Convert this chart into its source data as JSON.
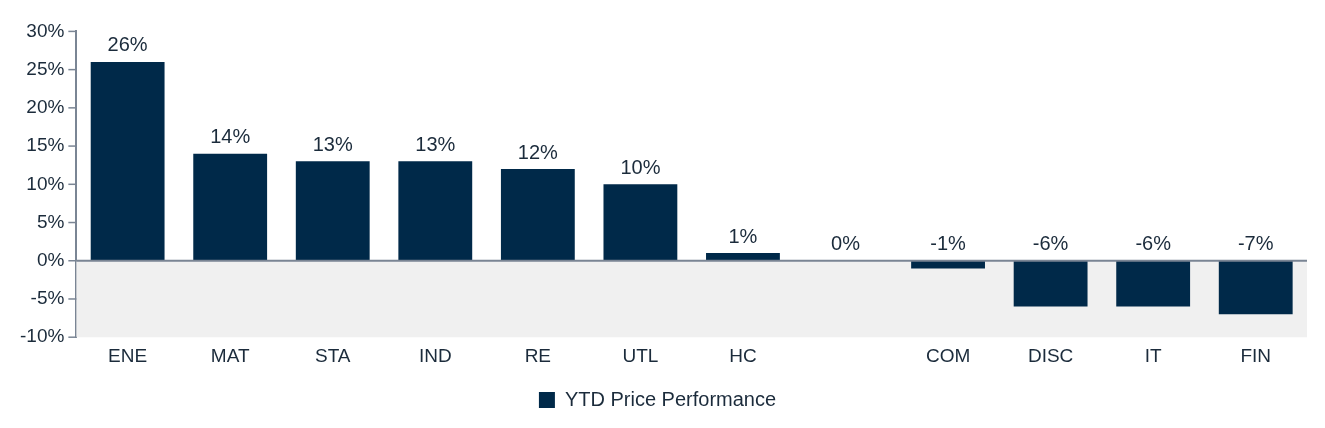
{
  "chart_data": {
    "type": "bar",
    "categories": [
      "ENE",
      "MAT",
      "STA",
      "IND",
      "RE",
      "UTL",
      "HC",
      null,
      "COM",
      "DISC",
      "IT",
      "FIN"
    ],
    "series": [
      {
        "name": "YTD Price Performance",
        "color": "#002949",
        "values": [
          26,
          14,
          13,
          13,
          12,
          10,
          1,
          0,
          -1,
          -6,
          -6,
          -7
        ],
        "value_labels": [
          "26%",
          "14%",
          "13%",
          "13%",
          "12%",
          "10%",
          "1%",
          "0%",
          "-1%",
          "-6%",
          "-6%",
          "-7%"
        ]
      }
    ],
    "ylim": [
      -10,
      30
    ],
    "yticks": [
      {
        "value": -10,
        "label": "-10%"
      },
      {
        "value": -5,
        "label": "-5%"
      },
      {
        "value": 0,
        "label": "0%"
      },
      {
        "value": 5,
        "label": "5%"
      },
      {
        "value": 10,
        "label": "10%"
      },
      {
        "value": 15,
        "label": "15%"
      },
      {
        "value": 20,
        "label": "20%"
      },
      {
        "value": 25,
        "label": "25%"
      },
      {
        "value": 30,
        "label": "30%"
      }
    ],
    "bands": [
      {
        "axis": "y",
        "from": -10,
        "to": 0,
        "color": "#f0f0f0"
      }
    ],
    "legend": "bottom"
  }
}
